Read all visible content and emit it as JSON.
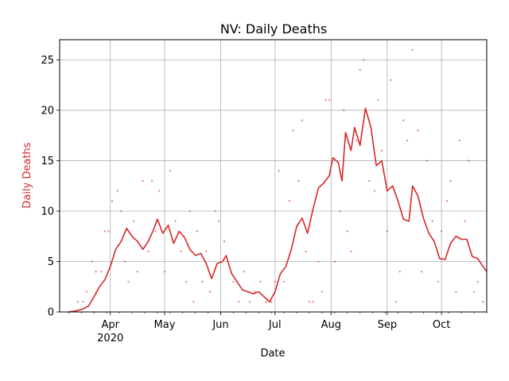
{
  "chart_data": {
    "type": "line",
    "title": "NV: Daily Deaths",
    "xlabel": "Date",
    "ylabel": "Daily Deaths",
    "ylim": [
      0,
      27
    ],
    "xlim": [
      "2020-03-04",
      "2020-10-26"
    ],
    "grid": true,
    "colors": {
      "series": "#d62728",
      "grid": "#b0b0b0",
      "axis": "#000000"
    },
    "y_ticks": [
      {
        "value": 0,
        "label": "0"
      },
      {
        "value": 5,
        "label": "5"
      },
      {
        "value": 10,
        "label": "10"
      },
      {
        "value": 15,
        "label": "15"
      },
      {
        "value": 20,
        "label": "20"
      },
      {
        "value": 25,
        "label": "25"
      }
    ],
    "x_ticks": [
      {
        "date": "2020-04-01",
        "label": "Apr",
        "sublabel": "2020"
      },
      {
        "date": "2020-05-01",
        "label": "May",
        "sublabel": ""
      },
      {
        "date": "2020-06-01",
        "label": "Jun",
        "sublabel": ""
      },
      {
        "date": "2020-07-01",
        "label": "Jul",
        "sublabel": ""
      },
      {
        "date": "2020-08-01",
        "label": "Aug",
        "sublabel": ""
      },
      {
        "date": "2020-09-01",
        "label": "Sep",
        "sublabel": ""
      },
      {
        "date": "2020-10-01",
        "label": "Oct",
        "sublabel": ""
      }
    ],
    "series": [
      {
        "kind": "smoothed-line",
        "points": [
          [
            "2020-03-09",
            0
          ],
          [
            "2020-03-13",
            0.1
          ],
          [
            "2020-03-17",
            0.3
          ],
          [
            "2020-03-20",
            0.6
          ],
          [
            "2020-03-23",
            1.5
          ],
          [
            "2020-03-26",
            2.5
          ],
          [
            "2020-03-29",
            3.2
          ],
          [
            "2020-04-01",
            4.5
          ],
          [
            "2020-04-04",
            6.2
          ],
          [
            "2020-04-07",
            7.0
          ],
          [
            "2020-04-10",
            8.3
          ],
          [
            "2020-04-13",
            7.5
          ],
          [
            "2020-04-16",
            7.0
          ],
          [
            "2020-04-19",
            6.2
          ],
          [
            "2020-04-22",
            7.0
          ],
          [
            "2020-04-25",
            8.2
          ],
          [
            "2020-04-27",
            9.2
          ],
          [
            "2020-04-30",
            7.8
          ],
          [
            "2020-05-03",
            8.6
          ],
          [
            "2020-05-06",
            6.8
          ],
          [
            "2020-05-09",
            8.0
          ],
          [
            "2020-05-12",
            7.4
          ],
          [
            "2020-05-15",
            6.2
          ],
          [
            "2020-05-18",
            5.6
          ],
          [
            "2020-05-21",
            5.8
          ],
          [
            "2020-05-24",
            4.8
          ],
          [
            "2020-05-27",
            3.3
          ],
          [
            "2020-05-30",
            4.8
          ],
          [
            "2020-06-02",
            5.0
          ],
          [
            "2020-06-04",
            5.6
          ],
          [
            "2020-06-07",
            3.8
          ],
          [
            "2020-06-10",
            3.0
          ],
          [
            "2020-06-13",
            2.2
          ],
          [
            "2020-06-16",
            2.0
          ],
          [
            "2020-06-19",
            1.8
          ],
          [
            "2020-06-22",
            2.0
          ],
          [
            "2020-06-25",
            1.5
          ],
          [
            "2020-06-28",
            1.0
          ],
          [
            "2020-07-01",
            2.0
          ],
          [
            "2020-07-04",
            3.8
          ],
          [
            "2020-07-07",
            4.5
          ],
          [
            "2020-07-10",
            6.2
          ],
          [
            "2020-07-13",
            8.5
          ],
          [
            "2020-07-16",
            9.3
          ],
          [
            "2020-07-19",
            7.8
          ],
          [
            "2020-07-22",
            10.2
          ],
          [
            "2020-07-25",
            12.3
          ],
          [
            "2020-07-28",
            12.8
          ],
          [
            "2020-07-31",
            13.5
          ],
          [
            "2020-08-02",
            15.3
          ],
          [
            "2020-08-05",
            14.8
          ],
          [
            "2020-08-07",
            13.0
          ],
          [
            "2020-08-09",
            17.8
          ],
          [
            "2020-08-12",
            16.0
          ],
          [
            "2020-08-14",
            18.3
          ],
          [
            "2020-08-17",
            16.5
          ],
          [
            "2020-08-20",
            20.2
          ],
          [
            "2020-08-23",
            18.3
          ],
          [
            "2020-08-26",
            14.5
          ],
          [
            "2020-08-29",
            15.0
          ],
          [
            "2020-09-01",
            12.0
          ],
          [
            "2020-09-04",
            12.5
          ],
          [
            "2020-09-07",
            11.0
          ],
          [
            "2020-09-10",
            9.2
          ],
          [
            "2020-09-13",
            9.0
          ],
          [
            "2020-09-15",
            12.5
          ],
          [
            "2020-09-18",
            11.5
          ],
          [
            "2020-09-21",
            9.3
          ],
          [
            "2020-09-24",
            7.8
          ],
          [
            "2020-09-27",
            7.0
          ],
          [
            "2020-09-30",
            5.3
          ],
          [
            "2020-10-03",
            5.2
          ],
          [
            "2020-10-06",
            6.8
          ],
          [
            "2020-10-09",
            7.5
          ],
          [
            "2020-10-12",
            7.2
          ],
          [
            "2020-10-15",
            7.2
          ],
          [
            "2020-10-18",
            5.5
          ],
          [
            "2020-10-21",
            5.3
          ],
          [
            "2020-10-24",
            4.5
          ],
          [
            "2020-10-26",
            4.0
          ]
        ]
      },
      {
        "kind": "daily-dots",
        "points": [
          [
            "2020-03-14",
            1
          ],
          [
            "2020-03-17",
            1
          ],
          [
            "2020-03-19",
            2
          ],
          [
            "2020-03-22",
            5
          ],
          [
            "2020-03-24",
            4
          ],
          [
            "2020-03-27",
            4
          ],
          [
            "2020-03-29",
            8
          ],
          [
            "2020-03-31",
            8
          ],
          [
            "2020-04-02",
            11
          ],
          [
            "2020-04-05",
            12
          ],
          [
            "2020-04-07",
            10
          ],
          [
            "2020-04-09",
            5
          ],
          [
            "2020-04-11",
            3
          ],
          [
            "2020-04-14",
            9
          ],
          [
            "2020-04-16",
            4
          ],
          [
            "2020-04-19",
            13
          ],
          [
            "2020-04-22",
            6
          ],
          [
            "2020-04-24",
            13
          ],
          [
            "2020-04-26",
            8
          ],
          [
            "2020-04-28",
            12
          ],
          [
            "2020-05-01",
            4
          ],
          [
            "2020-05-04",
            14
          ],
          [
            "2020-05-07",
            9
          ],
          [
            "2020-05-10",
            6
          ],
          [
            "2020-05-13",
            3
          ],
          [
            "2020-05-15",
            10
          ],
          [
            "2020-05-17",
            1
          ],
          [
            "2020-05-19",
            8
          ],
          [
            "2020-05-22",
            3
          ],
          [
            "2020-05-24",
            6
          ],
          [
            "2020-05-26",
            2
          ],
          [
            "2020-05-29",
            10
          ],
          [
            "2020-05-31",
            9
          ],
          [
            "2020-06-03",
            7
          ],
          [
            "2020-06-05",
            5
          ],
          [
            "2020-06-08",
            3
          ],
          [
            "2020-06-11",
            1
          ],
          [
            "2020-06-14",
            4
          ],
          [
            "2020-06-17",
            1
          ],
          [
            "2020-06-20",
            2
          ],
          [
            "2020-06-23",
            3
          ],
          [
            "2020-06-26",
            1
          ],
          [
            "2020-06-29",
            1
          ],
          [
            "2020-07-01",
            3
          ],
          [
            "2020-07-03",
            14
          ],
          [
            "2020-07-06",
            3
          ],
          [
            "2020-07-09",
            11
          ],
          [
            "2020-07-11",
            18
          ],
          [
            "2020-07-14",
            13
          ],
          [
            "2020-07-16",
            19
          ],
          [
            "2020-07-18",
            6
          ],
          [
            "2020-07-20",
            1
          ],
          [
            "2020-07-22",
            1
          ],
          [
            "2020-07-25",
            5
          ],
          [
            "2020-07-27",
            2
          ],
          [
            "2020-07-29",
            21
          ],
          [
            "2020-07-31",
            21
          ],
          [
            "2020-08-03",
            5
          ],
          [
            "2020-08-06",
            10
          ],
          [
            "2020-08-08",
            20
          ],
          [
            "2020-08-10",
            8
          ],
          [
            "2020-08-12",
            6
          ],
          [
            "2020-08-15",
            17
          ],
          [
            "2020-08-17",
            24
          ],
          [
            "2020-08-19",
            25
          ],
          [
            "2020-08-22",
            13
          ],
          [
            "2020-08-25",
            12
          ],
          [
            "2020-08-27",
            21
          ],
          [
            "2020-08-29",
            16
          ],
          [
            "2020-09-01",
            8
          ],
          [
            "2020-09-03",
            23
          ],
          [
            "2020-09-06",
            1
          ],
          [
            "2020-09-08",
            4
          ],
          [
            "2020-09-10",
            19
          ],
          [
            "2020-09-12",
            17
          ],
          [
            "2020-09-15",
            26
          ],
          [
            "2020-09-18",
            18
          ],
          [
            "2020-09-20",
            4
          ],
          [
            "2020-09-23",
            15
          ],
          [
            "2020-09-26",
            9
          ],
          [
            "2020-09-29",
            3
          ],
          [
            "2020-10-01",
            8
          ],
          [
            "2020-10-04",
            11
          ],
          [
            "2020-10-06",
            13
          ],
          [
            "2020-10-09",
            2
          ],
          [
            "2020-10-11",
            17
          ],
          [
            "2020-10-14",
            9
          ],
          [
            "2020-10-16",
            15
          ],
          [
            "2020-10-19",
            2
          ],
          [
            "2020-10-21",
            3
          ],
          [
            "2020-10-24",
            1
          ]
        ]
      }
    ]
  }
}
